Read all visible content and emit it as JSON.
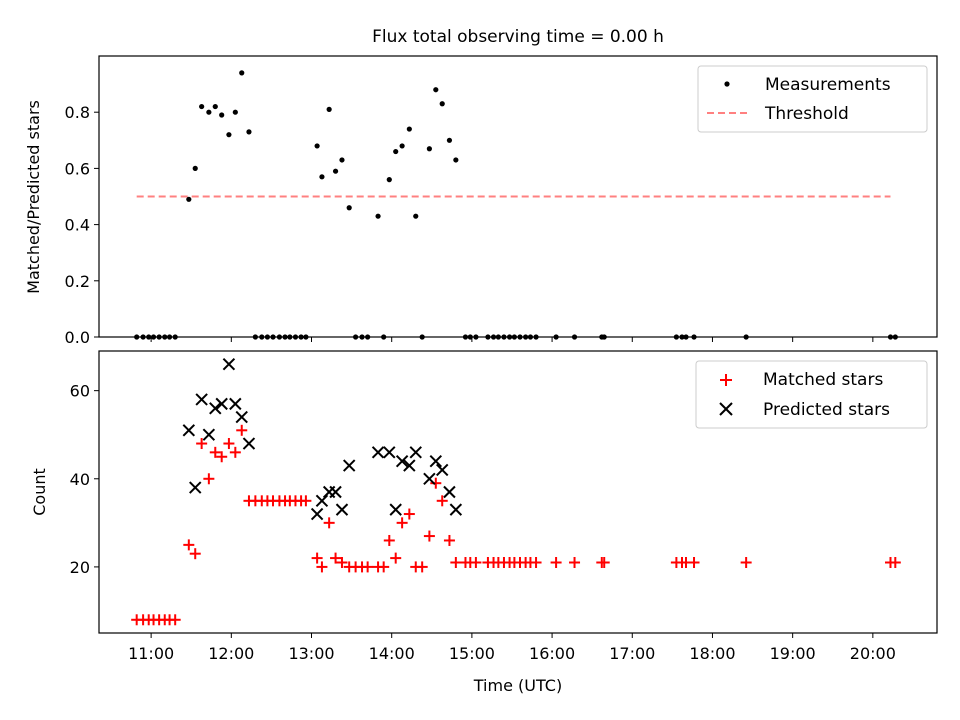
{
  "title": "Flux total observing time = 0.00 h",
  "colors": {
    "black": "#000000",
    "red": "#ff0000",
    "threshold": "#ff8080",
    "axes": "#000000"
  },
  "chart_data": [
    {
      "type": "scatter",
      "ylabel": "Matched/Predicted stars",
      "xlim": [
        10.35,
        20.8
      ],
      "ylim": [
        0,
        1.0
      ],
      "yticks": [
        0.0,
        0.2,
        0.4,
        0.6,
        0.8
      ],
      "ytick_labels": [
        "0.0",
        "0.2",
        "0.4",
        "0.6",
        "0.8"
      ],
      "legend_placement": "top-right",
      "threshold": {
        "name": "Threshold",
        "value": 0.5,
        "x_range": [
          10.82,
          20.22
        ]
      },
      "series": [
        {
          "name": "Measurements",
          "marker": "dot",
          "color": "#000000",
          "points": [
            [
              10.82,
              0
            ],
            [
              10.9,
              0
            ],
            [
              10.97,
              0
            ],
            [
              11.03,
              0
            ],
            [
              11.1,
              0
            ],
            [
              11.17,
              0
            ],
            [
              11.23,
              0
            ],
            [
              11.3,
              0
            ],
            [
              11.47,
              0.49
            ],
            [
              11.55,
              0.6
            ],
            [
              11.63,
              0.82
            ],
            [
              11.72,
              0.8
            ],
            [
              11.8,
              0.82
            ],
            [
              11.88,
              0.79
            ],
            [
              11.97,
              0.72
            ],
            [
              12.05,
              0.8
            ],
            [
              12.13,
              0.94
            ],
            [
              12.22,
              0.73
            ],
            [
              12.3,
              0
            ],
            [
              12.38,
              0
            ],
            [
              12.45,
              0
            ],
            [
              12.52,
              0
            ],
            [
              12.6,
              0
            ],
            [
              12.67,
              0
            ],
            [
              12.73,
              0
            ],
            [
              12.8,
              0
            ],
            [
              12.87,
              0
            ],
            [
              12.93,
              0
            ],
            [
              13.07,
              0.68
            ],
            [
              13.13,
              0.57
            ],
            [
              13.22,
              0.81
            ],
            [
              13.3,
              0.59
            ],
            [
              13.38,
              0.63
            ],
            [
              13.47,
              0.46
            ],
            [
              13.55,
              0
            ],
            [
              13.63,
              0
            ],
            [
              13.7,
              0
            ],
            [
              13.83,
              0.43
            ],
            [
              13.9,
              0
            ],
            [
              13.97,
              0.56
            ],
            [
              14.05,
              0.66
            ],
            [
              14.13,
              0.68
            ],
            [
              14.22,
              0.74
            ],
            [
              14.3,
              0.43
            ],
            [
              14.38,
              0
            ],
            [
              14.47,
              0.67
            ],
            [
              14.55,
              0.88
            ],
            [
              14.63,
              0.83
            ],
            [
              14.72,
              0.7
            ],
            [
              14.8,
              0.63
            ],
            [
              14.92,
              0
            ],
            [
              14.98,
              0
            ],
            [
              15.05,
              0
            ],
            [
              15.2,
              0
            ],
            [
              15.27,
              0
            ],
            [
              15.33,
              0
            ],
            [
              15.4,
              0
            ],
            [
              15.47,
              0
            ],
            [
              15.53,
              0
            ],
            [
              15.6,
              0
            ],
            [
              15.67,
              0
            ],
            [
              15.73,
              0
            ],
            [
              15.8,
              0
            ],
            [
              16.05,
              0
            ],
            [
              16.28,
              0
            ],
            [
              16.62,
              0
            ],
            [
              16.65,
              0
            ],
            [
              17.55,
              0
            ],
            [
              17.62,
              0
            ],
            [
              17.67,
              0
            ],
            [
              17.77,
              0
            ],
            [
              18.42,
              0
            ],
            [
              20.22,
              0
            ],
            [
              20.28,
              0
            ]
          ]
        }
      ]
    },
    {
      "type": "scatter",
      "xlabel": "Time (UTC)",
      "ylabel": "Count",
      "xlim": [
        10.35,
        20.8
      ],
      "ylim": [
        5,
        69
      ],
      "yticks": [
        20,
        40,
        60
      ],
      "ytick_labels": [
        "20",
        "40",
        "60"
      ],
      "xticks": [
        11,
        12,
        13,
        14,
        15,
        16,
        17,
        18,
        19,
        20
      ],
      "xtick_labels": [
        "11:00",
        "12:00",
        "13:00",
        "14:00",
        "15:00",
        "16:00",
        "17:00",
        "18:00",
        "19:00",
        "20:00"
      ],
      "legend_placement": "top-right",
      "series": [
        {
          "name": "Matched stars",
          "marker": "plus",
          "color": "#ff0000",
          "points": [
            [
              10.82,
              8
            ],
            [
              10.9,
              8
            ],
            [
              10.97,
              8
            ],
            [
              11.03,
              8
            ],
            [
              11.1,
              8
            ],
            [
              11.17,
              8
            ],
            [
              11.23,
              8
            ],
            [
              11.3,
              8
            ],
            [
              11.47,
              25
            ],
            [
              11.55,
              23
            ],
            [
              11.63,
              48
            ],
            [
              11.72,
              40
            ],
            [
              11.8,
              46
            ],
            [
              11.88,
              45
            ],
            [
              11.97,
              48
            ],
            [
              12.05,
              46
            ],
            [
              12.13,
              51
            ],
            [
              12.22,
              35
            ],
            [
              12.3,
              35
            ],
            [
              12.38,
              35
            ],
            [
              12.45,
              35
            ],
            [
              12.52,
              35
            ],
            [
              12.6,
              35
            ],
            [
              12.67,
              35
            ],
            [
              12.73,
              35
            ],
            [
              12.8,
              35
            ],
            [
              12.87,
              35
            ],
            [
              12.93,
              35
            ],
            [
              13.07,
              22
            ],
            [
              13.13,
              20
            ],
            [
              13.22,
              30
            ],
            [
              13.3,
              22
            ],
            [
              13.38,
              21
            ],
            [
              13.47,
              20
            ],
            [
              13.55,
              20
            ],
            [
              13.63,
              20
            ],
            [
              13.7,
              20
            ],
            [
              13.83,
              20
            ],
            [
              13.9,
              20
            ],
            [
              13.97,
              26
            ],
            [
              14.05,
              22
            ],
            [
              14.13,
              30
            ],
            [
              14.22,
              32
            ],
            [
              14.3,
              20
            ],
            [
              14.38,
              20
            ],
            [
              14.47,
              27
            ],
            [
              14.55,
              39
            ],
            [
              14.63,
              35
            ],
            [
              14.72,
              26
            ],
            [
              14.8,
              21
            ],
            [
              14.92,
              21
            ],
            [
              14.98,
              21
            ],
            [
              15.05,
              21
            ],
            [
              15.2,
              21
            ],
            [
              15.27,
              21
            ],
            [
              15.33,
              21
            ],
            [
              15.4,
              21
            ],
            [
              15.47,
              21
            ],
            [
              15.53,
              21
            ],
            [
              15.6,
              21
            ],
            [
              15.67,
              21
            ],
            [
              15.73,
              21
            ],
            [
              15.8,
              21
            ],
            [
              16.05,
              21
            ],
            [
              16.28,
              21
            ],
            [
              16.62,
              21
            ],
            [
              16.65,
              21
            ],
            [
              17.55,
              21
            ],
            [
              17.62,
              21
            ],
            [
              17.67,
              21
            ],
            [
              17.77,
              21
            ],
            [
              18.42,
              21
            ],
            [
              20.22,
              21
            ],
            [
              20.28,
              21
            ]
          ]
        },
        {
          "name": "Predicted stars",
          "marker": "x",
          "color": "#000000",
          "points": [
            [
              11.47,
              51
            ],
            [
              11.55,
              38
            ],
            [
              11.63,
              58
            ],
            [
              11.72,
              50
            ],
            [
              11.8,
              56
            ],
            [
              11.88,
              57
            ],
            [
              11.97,
              66
            ],
            [
              12.05,
              57
            ],
            [
              12.13,
              54
            ],
            [
              12.22,
              48
            ],
            [
              13.07,
              32
            ],
            [
              13.13,
              35
            ],
            [
              13.22,
              37
            ],
            [
              13.3,
              37
            ],
            [
              13.38,
              33
            ],
            [
              13.47,
              43
            ],
            [
              13.83,
              46
            ],
            [
              13.97,
              46
            ],
            [
              14.05,
              33
            ],
            [
              14.13,
              44
            ],
            [
              14.22,
              43
            ],
            [
              14.3,
              46
            ],
            [
              14.47,
              40
            ],
            [
              14.55,
              44
            ],
            [
              14.63,
              42
            ],
            [
              14.72,
              37
            ],
            [
              14.8,
              33
            ]
          ]
        }
      ]
    }
  ]
}
